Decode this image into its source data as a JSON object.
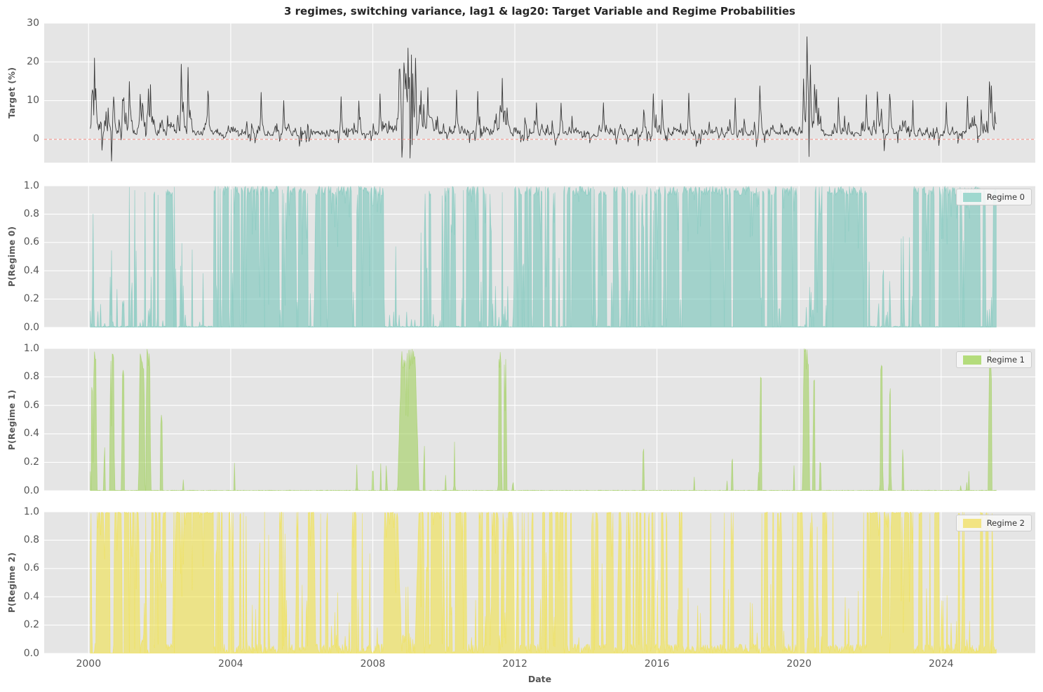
{
  "chart_data": {
    "type": "line+area",
    "title": "3 regimes, switching variance, lag1 & lag20: Target Variable and Regime Probabilities",
    "xlabel": "Date",
    "x_ticks": [
      2000,
      2004,
      2008,
      2012,
      2016,
      2020,
      2024
    ],
    "x_range": [
      1998.75,
      2026.65
    ],
    "x_data_range": [
      2000.05,
      2025.55
    ],
    "grid": "white-on-gray",
    "panels": [
      {
        "type": "line",
        "ylabel": "Target (%)",
        "ylim": [
          -6,
          30
        ],
        "yticks": [
          {
            "v": 0,
            "label": "0"
          },
          {
            "v": 10,
            "label": "10"
          },
          {
            "v": 20,
            "label": "20"
          },
          {
            "v": 30,
            "label": "30"
          }
        ],
        "line_color": "#3a3a3a",
        "zero_line": {
          "value": 0,
          "color": "#f28b82",
          "style": "dashed"
        }
      },
      {
        "type": "area",
        "ylabel": "P(Regime 0)",
        "legend": "Regime 0",
        "legend_position": "upper-right",
        "ylim": [
          0,
          1
        ],
        "yticks": [
          {
            "v": 0,
            "label": "0.0"
          },
          {
            "v": 0.2,
            "label": "0.2"
          },
          {
            "v": 0.4,
            "label": "0.4"
          },
          {
            "v": 0.6,
            "label": "0.6"
          },
          {
            "v": 0.8,
            "label": "0.8"
          },
          {
            "v": 1,
            "label": "1.0"
          }
        ],
        "fill_color": "rgba(121,199,187,0.62)",
        "legend_color": "#9fd8cf"
      },
      {
        "type": "area",
        "ylabel": "P(Regime 1)",
        "legend": "Regime 1",
        "legend_position": "upper-right",
        "ylim": [
          0,
          1
        ],
        "yticks": [
          {
            "v": 0,
            "label": "0.0"
          },
          {
            "v": 0.2,
            "label": "0.2"
          },
          {
            "v": 0.4,
            "label": "0.4"
          },
          {
            "v": 0.6,
            "label": "0.6"
          },
          {
            "v": 0.8,
            "label": "0.8"
          },
          {
            "v": 1,
            "label": "1.0"
          }
        ],
        "fill_color": "rgba(154,205,80,0.55)",
        "legend_color": "#b4dc7c"
      },
      {
        "type": "area",
        "ylabel": "P(Regime 2)",
        "legend": "Regime 2",
        "legend_position": "upper-right",
        "ylim": [
          0,
          1
        ],
        "yticks": [
          {
            "v": 0,
            "label": "0.0"
          },
          {
            "v": 0.2,
            "label": "0.2"
          },
          {
            "v": 0.4,
            "label": "0.4"
          },
          {
            "v": 0.6,
            "label": "0.6"
          },
          {
            "v": 0.8,
            "label": "0.8"
          },
          {
            "v": 1,
            "label": "1.0"
          }
        ],
        "fill_color": "rgba(242,226,60,0.55)",
        "legend_color": "#f2e483"
      }
    ],
    "regime0_segments": [
      [
        1998.75,
        2000.05,
        0.0
      ],
      [
        2000.05,
        2000.5,
        0.05
      ],
      [
        2000.5,
        2000.78,
        0.3
      ],
      [
        2000.78,
        2001.05,
        0.12
      ],
      [
        2001.05,
        2001.35,
        0.18
      ],
      [
        2001.35,
        2001.55,
        0.05
      ],
      [
        2001.55,
        2002.3,
        0.3
      ],
      [
        2002.3,
        2003.5,
        0.02
      ],
      [
        2003.5,
        2004.2,
        0.55
      ],
      [
        2004.2,
        2008.3,
        0.78
      ],
      [
        2008.3,
        2009.4,
        0.01
      ],
      [
        2009.4,
        2010.1,
        0.55
      ],
      [
        2010.1,
        2010.9,
        0.5
      ],
      [
        2010.9,
        2011.45,
        0.35
      ],
      [
        2011.45,
        2011.95,
        0.06
      ],
      [
        2011.95,
        2014.8,
        0.8
      ],
      [
        2014.8,
        2015.9,
        0.65
      ],
      [
        2015.9,
        2019.9,
        0.8
      ],
      [
        2019.9,
        2020.4,
        0.03
      ],
      [
        2020.4,
        2021.9,
        0.75
      ],
      [
        2021.9,
        2023.2,
        0.1
      ],
      [
        2023.2,
        2025.55,
        0.8
      ]
    ],
    "regime1_events": [
      {
        "t": 2000.1,
        "h": 0.74,
        "w": 0.03
      },
      {
        "t": 2000.18,
        "h": 1.0,
        "w": 0.05
      },
      {
        "t": 2000.45,
        "h": 0.33,
        "w": 0.02
      },
      {
        "t": 2000.66,
        "h": 1.0,
        "w": 0.07
      },
      {
        "t": 2000.97,
        "h": 0.95,
        "w": 0.04
      },
      {
        "t": 2001.5,
        "h": 1.0,
        "w": 0.09
      },
      {
        "t": 2001.68,
        "h": 1.0,
        "w": 0.07
      },
      {
        "t": 2002.05,
        "h": 0.55,
        "w": 0.03
      },
      {
        "t": 2007.55,
        "h": 0.2,
        "w": 0.02
      },
      {
        "t": 2008.0,
        "h": 0.15,
        "w": 0.02
      },
      {
        "t": 2008.38,
        "h": 0.18,
        "w": 0.02
      },
      {
        "t": 2009.0,
        "h": 1.0,
        "w": 0.3
      },
      {
        "t": 2009.45,
        "h": 0.32,
        "w": 0.02
      },
      {
        "t": 2010.05,
        "h": 0.12,
        "w": 0.02
      },
      {
        "t": 2010.3,
        "h": 0.35,
        "w": 0.02
      },
      {
        "t": 2011.58,
        "h": 1.0,
        "w": 0.05
      },
      {
        "t": 2011.73,
        "h": 0.95,
        "w": 0.04
      },
      {
        "t": 2011.95,
        "h": 0.06,
        "w": 0.02
      },
      {
        "t": 2015.62,
        "h": 0.31,
        "w": 0.02
      },
      {
        "t": 2018.12,
        "h": 0.23,
        "w": 0.02
      },
      {
        "t": 2018.92,
        "h": 0.9,
        "w": 0.03
      },
      {
        "t": 2020.2,
        "h": 1.0,
        "w": 0.1
      },
      {
        "t": 2020.42,
        "h": 0.78,
        "w": 0.03
      },
      {
        "t": 2020.6,
        "h": 0.2,
        "w": 0.02
      },
      {
        "t": 2022.32,
        "h": 0.97,
        "w": 0.04
      },
      {
        "t": 2022.56,
        "h": 0.75,
        "w": 0.03
      },
      {
        "t": 2022.92,
        "h": 0.3,
        "w": 0.02
      },
      {
        "t": 2024.55,
        "h": 0.04,
        "w": 0.015
      },
      {
        "t": 2025.38,
        "h": 1.0,
        "w": 0.05
      }
    ],
    "target_vol_segments": [
      [
        2000.05,
        2003.5,
        1.8
      ],
      [
        2008.3,
        2009.7,
        2.0
      ],
      [
        2011.4,
        2012.0,
        1.5
      ],
      [
        2015.7,
        2016.3,
        1.25
      ],
      [
        2018.8,
        2019.1,
        1.3
      ],
      [
        2020.1,
        2020.8,
        1.8
      ],
      [
        2022.0,
        2023.0,
        1.45
      ],
      [
        2024.6,
        2025.55,
        1.4
      ]
    ],
    "target_spikes": [
      {
        "t": 2000.2,
        "v": 13.2
      },
      {
        "t": 2000.7,
        "v": 11
      },
      {
        "t": 2001.15,
        "v": 15.3
      },
      {
        "t": 2001.45,
        "v": 12.5
      },
      {
        "t": 2001.75,
        "v": 14.8
      },
      {
        "t": 2002.6,
        "v": 19.5
      },
      {
        "t": 2002.8,
        "v": 19
      },
      {
        "t": 2003.35,
        "v": 12.8
      },
      {
        "t": 2004.85,
        "v": 13
      },
      {
        "t": 2005.5,
        "v": 10.2
      },
      {
        "t": 2007.1,
        "v": 11.5
      },
      {
        "t": 2007.6,
        "v": 10.5
      },
      {
        "t": 2008.2,
        "v": 12
      },
      {
        "t": 2008.75,
        "v": 18
      },
      {
        "t": 2008.87,
        "v": 21
      },
      {
        "t": 2008.82,
        "v": -4.8
      },
      {
        "t": 2009.0,
        "v": 24.5
      },
      {
        "t": 2009.05,
        "v": -5.2
      },
      {
        "t": 2009.2,
        "v": 21.3
      },
      {
        "t": 2009.35,
        "v": 13
      },
      {
        "t": 2009.55,
        "v": 14
      },
      {
        "t": 2010.35,
        "v": 13.5
      },
      {
        "t": 2010.95,
        "v": 12.6
      },
      {
        "t": 2011.65,
        "v": 17
      },
      {
        "t": 2012.6,
        "v": 9.5
      },
      {
        "t": 2013.3,
        "v": 9.8
      },
      {
        "t": 2014.5,
        "v": 9.6
      },
      {
        "t": 2015.9,
        "v": 12.4
      },
      {
        "t": 2016.15,
        "v": 11
      },
      {
        "t": 2016.9,
        "v": 12
      },
      {
        "t": 2018.2,
        "v": 11.2
      },
      {
        "t": 2018.9,
        "v": 13.8
      },
      {
        "t": 2020.22,
        "v": 28.5
      },
      {
        "t": 2020.28,
        "v": -4.5
      },
      {
        "t": 2020.32,
        "v": 19.5
      },
      {
        "t": 2020.5,
        "v": 14
      },
      {
        "t": 2021.1,
        "v": 11
      },
      {
        "t": 2021.9,
        "v": 12.2
      },
      {
        "t": 2022.2,
        "v": 12.5
      },
      {
        "t": 2022.4,
        "v": -3
      },
      {
        "t": 2022.55,
        "v": 12.3
      },
      {
        "t": 2023.2,
        "v": 10.5
      },
      {
        "t": 2024.15,
        "v": 10
      },
      {
        "t": 2024.75,
        "v": 12
      },
      {
        "t": 2025.35,
        "v": 15.8
      },
      {
        "t": 2025.42,
        "v": 14.5
      }
    ],
    "style": {
      "axes_background": "#e5e5e5",
      "grid_color": "#ffffff",
      "tick_color": "#555555",
      "title_color": "#262626"
    }
  }
}
